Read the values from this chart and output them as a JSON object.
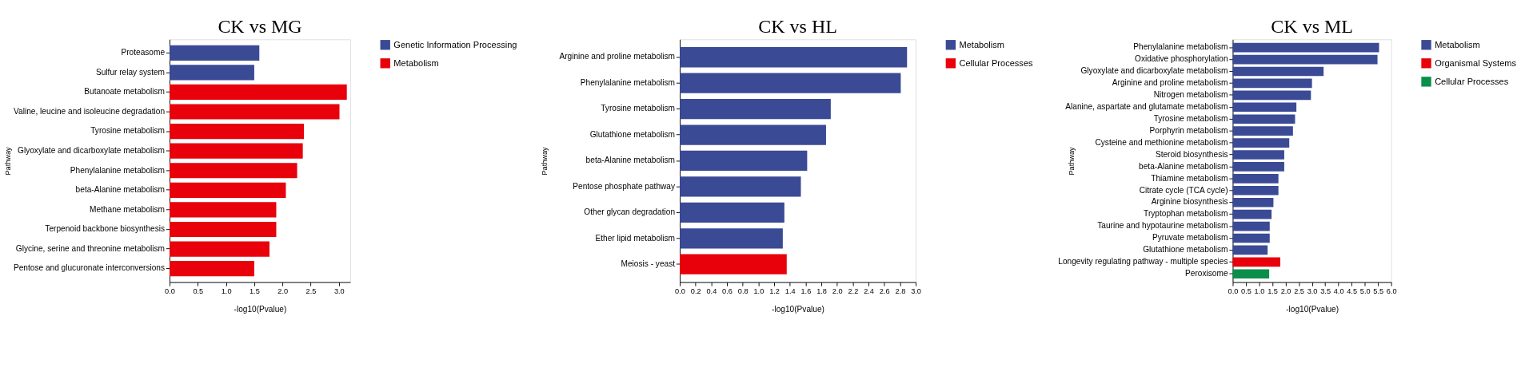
{
  "chart_data": [
    {
      "type": "bar",
      "orientation": "horizontal",
      "title": "CK vs MG",
      "xlabel": "-log10(Pvalue)",
      "ylabel": "Pathway",
      "legend": "right",
      "categories": [
        "Proteasome",
        "Sulfur relay system",
        "Butanoate metabolism",
        "Valine, leucine and isoleucine degradation",
        "Tyrosine metabolism",
        "Glyoxylate and dicarboxylate metabolism",
        "Phenylalanine metabolism",
        "beta-Alanine metabolism",
        "Methane metabolism",
        "Terpenoid backbone biosynthesis",
        "Glycine, serine and threonine metabolism",
        "Pentose and glucuronate interconversions"
      ],
      "series": [
        {
          "name": "Genetic Information Processing",
          "color": "#3a4a95",
          "values": [
            1.59,
            1.5,
            null,
            null,
            null,
            null,
            null,
            null,
            null,
            null,
            null,
            null
          ]
        },
        {
          "name": "Metabolism",
          "color": "#e8000b",
          "values": [
            null,
            null,
            3.14,
            3.01,
            2.38,
            2.36,
            2.26,
            2.06,
            1.89,
            1.89,
            1.77,
            1.5
          ]
        }
      ],
      "xlim": [
        0,
        3.2
      ],
      "xticks": [
        {
          "value": 0,
          "label": "0.0"
        },
        {
          "value": 0.5,
          "label": "0.5"
        },
        {
          "value": 1,
          "label": "1.0"
        },
        {
          "value": 1.5,
          "label": "1.5"
        },
        {
          "value": 2,
          "label": "2.0"
        },
        {
          "value": 2.5,
          "label": "2.5"
        },
        {
          "value": 3,
          "label": "3.0"
        }
      ]
    },
    {
      "type": "bar",
      "orientation": "horizontal",
      "title": "CK vs HL",
      "xlabel": "-log10(Pvalue)",
      "ylabel": "Pathway",
      "legend": "right",
      "categories": [
        "Arginine and proline metabolism",
        "Phenylalanine metabolism",
        "Tyrosine metabolism",
        "Glutathione metabolism",
        "beta-Alanine metabolism",
        "Pentose phosphate pathway",
        "Other glycan degradation",
        "Ether lipid metabolism",
        "Meiosis - yeast"
      ],
      "series": [
        {
          "name": "Metabolism",
          "color": "#3a4a95",
          "values": [
            2.89,
            2.81,
            1.92,
            1.86,
            1.62,
            1.54,
            1.33,
            1.31,
            null
          ]
        },
        {
          "name": "Cellular Processes",
          "color": "#e8000b",
          "values": [
            null,
            null,
            null,
            null,
            null,
            null,
            null,
            null,
            1.36
          ]
        }
      ],
      "xlim": [
        0,
        3.0
      ],
      "xticks": [
        {
          "value": 0,
          "label": "0.0"
        },
        {
          "value": 0.2,
          "label": "0.2"
        },
        {
          "value": 0.4,
          "label": "0.4"
        },
        {
          "value": 0.6,
          "label": "0.6"
        },
        {
          "value": 0.8,
          "label": "0.8"
        },
        {
          "value": 1,
          "label": "1.0"
        },
        {
          "value": 1.2,
          "label": "1.2"
        },
        {
          "value": 1.4,
          "label": "1.4"
        },
        {
          "value": 1.6,
          "label": "1.6"
        },
        {
          "value": 1.8,
          "label": "1.8"
        },
        {
          "value": 2,
          "label": "2.0"
        },
        {
          "value": 2.2,
          "label": "2.2"
        },
        {
          "value": 2.4,
          "label": "2.4"
        },
        {
          "value": 2.6,
          "label": "2.6"
        },
        {
          "value": 2.8,
          "label": "2.8"
        },
        {
          "value": 3,
          "label": "3.0"
        }
      ]
    },
    {
      "type": "bar",
      "orientation": "horizontal",
      "title": "CK vs ML",
      "xlabel": "-log10(Pvalue)",
      "ylabel": "Pathway",
      "legend": "right",
      "categories": [
        "Phenylalanine metabolism",
        "Oxidative phosphorylation",
        "Glyoxylate and dicarboxylate metabolism",
        "Arginine and proline metabolism",
        "Nitrogen metabolism",
        "Alanine, aspartate and glutamate metabolism",
        "Tyrosine metabolism",
        "Porphyrin metabolism",
        "Cysteine and methionine metabolism",
        "Steroid biosynthesis",
        "beta-Alanine metabolism",
        "Thiamine metabolism",
        "Citrate cycle (TCA cycle)",
        "Arginine biosynthesis",
        "Tryptophan metabolism",
        "Taurine and hypotaurine metabolism",
        "Pyruvate metabolism",
        "Glutathione metabolism",
        "Longevity regulating pathway - multiple species",
        "Peroxisome"
      ],
      "series": [
        {
          "name": "Metabolism",
          "color": "#3a4a95",
          "values": [
            5.54,
            5.48,
            3.44,
            3.0,
            2.96,
            2.41,
            2.36,
            2.28,
            2.14,
            1.95,
            1.95,
            1.73,
            1.73,
            1.54,
            1.47,
            1.4,
            1.4,
            1.32,
            null,
            null
          ]
        },
        {
          "name": "Organismal Systems",
          "color": "#e8000b",
          "values": [
            null,
            null,
            null,
            null,
            null,
            null,
            null,
            null,
            null,
            null,
            null,
            null,
            null,
            null,
            null,
            null,
            null,
            null,
            1.8,
            null
          ]
        },
        {
          "name": "Cellular Processes",
          "color": "#0a8f4a",
          "values": [
            null,
            null,
            null,
            null,
            null,
            null,
            null,
            null,
            null,
            null,
            null,
            null,
            null,
            null,
            null,
            null,
            null,
            null,
            null,
            1.38
          ]
        }
      ],
      "xlim": [
        0,
        6.0
      ],
      "xticks": [
        {
          "value": 0,
          "label": "0.0"
        },
        {
          "value": 0.5,
          "label": "0.5"
        },
        {
          "value": 1,
          "label": "1.0"
        },
        {
          "value": 1.5,
          "label": "1.5"
        },
        {
          "value": 2,
          "label": "2.0"
        },
        {
          "value": 2.5,
          "label": "2.5"
        },
        {
          "value": 3,
          "label": "3.0"
        },
        {
          "value": 3.5,
          "label": "3.5"
        },
        {
          "value": 4,
          "label": "4.0"
        },
        {
          "value": 4.5,
          "label": "4.5"
        },
        {
          "value": 5,
          "label": "5.0"
        },
        {
          "value": 5.5,
          "label": "5.5"
        },
        {
          "value": 6,
          "label": "6.0"
        }
      ]
    }
  ]
}
